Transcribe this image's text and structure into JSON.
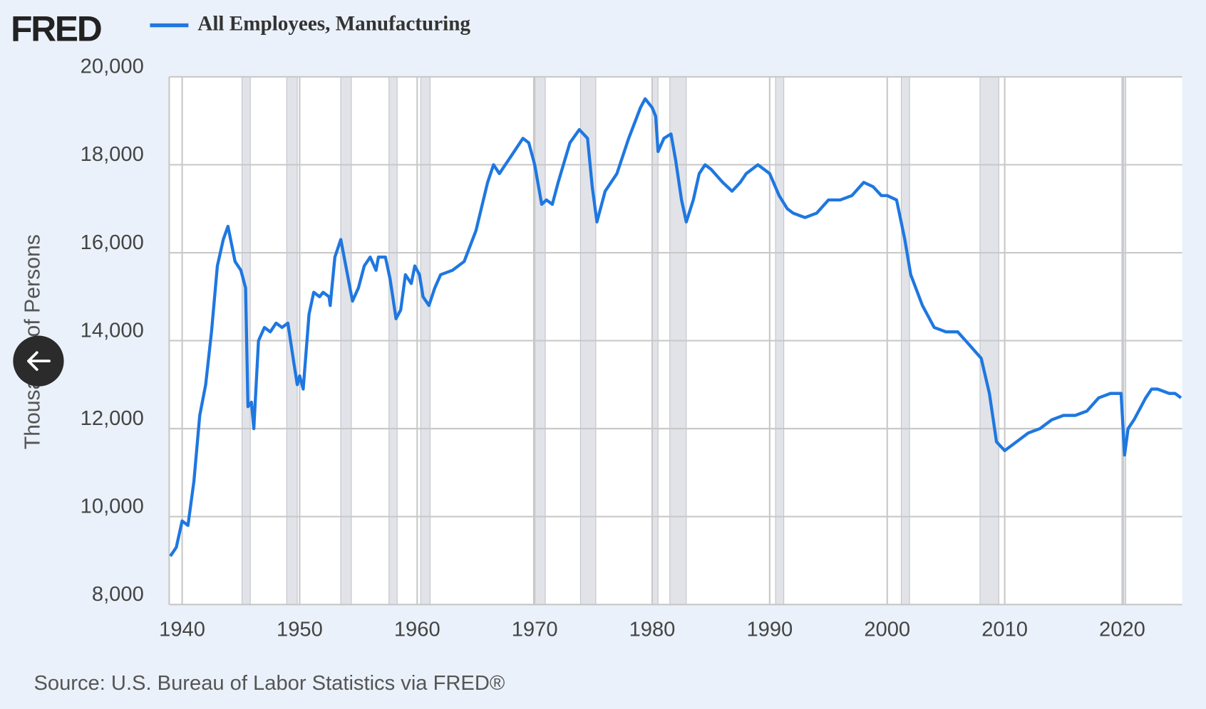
{
  "chart_data": {
    "type": "line",
    "logo": "FRED",
    "ylabel": "Thousands of Persons",
    "source": "Source: U.S. Bureau of Labor Statistics via FRED®",
    "xlim": [
      1938.9,
      2025.1
    ],
    "ylim": [
      8000,
      20000
    ],
    "xticks": [
      1940,
      1950,
      1960,
      1970,
      1980,
      1990,
      2000,
      2010,
      2020
    ],
    "yticks": [
      {
        "value": 8000,
        "label": "8,000"
      },
      {
        "value": 10000,
        "label": "10,000"
      },
      {
        "value": 12000,
        "label": "12,000"
      },
      {
        "value": 14000,
        "label": "14,000"
      },
      {
        "value": 16000,
        "label": "16,000"
      },
      {
        "value": 18000,
        "label": "18,000"
      },
      {
        "value": 20000,
        "label": "20,000"
      }
    ],
    "grid": true,
    "recessions": [
      [
        1945.1,
        1945.8
      ],
      [
        1948.9,
        1949.8
      ],
      [
        1953.5,
        1954.4
      ],
      [
        1957.6,
        1958.3
      ],
      [
        1960.3,
        1961.1
      ],
      [
        1969.9,
        1970.9
      ],
      [
        1973.9,
        1975.2
      ],
      [
        1980.0,
        1980.5
      ],
      [
        1981.5,
        1982.9
      ],
      [
        1990.5,
        1991.2
      ],
      [
        2001.2,
        2001.9
      ],
      [
        2007.9,
        2009.5
      ],
      [
        2020.1,
        2020.3
      ]
    ],
    "recession_color": "#e1e3e8",
    "series": [
      {
        "name": "All Employees, Manufacturing",
        "color": "#1f77e0",
        "x": [
          1939.0,
          1939.5,
          1940.0,
          1940.5,
          1941.0,
          1941.5,
          1942.0,
          1942.5,
          1943.0,
          1943.5,
          1943.9,
          1944.5,
          1945.0,
          1945.4,
          1945.6,
          1945.9,
          1946.1,
          1946.5,
          1947.0,
          1947.5,
          1948.0,
          1948.5,
          1949.0,
          1949.5,
          1949.8,
          1950.0,
          1950.3,
          1950.8,
          1951.2,
          1951.7,
          1952.0,
          1952.5,
          1952.6,
          1953.0,
          1953.5,
          1954.0,
          1954.5,
          1955.0,
          1955.5,
          1956.0,
          1956.5,
          1956.7,
          1957.3,
          1957.7,
          1958.2,
          1958.6,
          1959.0,
          1959.5,
          1959.8,
          1960.2,
          1960.5,
          1961.0,
          1961.5,
          1962.0,
          1963.0,
          1964.0,
          1965.0,
          1966.0,
          1966.5,
          1967.0,
          1967.5,
          1968.0,
          1969.0,
          1969.5,
          1970.0,
          1970.6,
          1971.0,
          1971.5,
          1972.0,
          1973.0,
          1973.8,
          1974.5,
          1974.9,
          1975.3,
          1976.0,
          1976.5,
          1977.0,
          1978.0,
          1979.0,
          1979.4,
          1980.0,
          1980.3,
          1980.5,
          1981.0,
          1981.6,
          1982.0,
          1982.5,
          1982.9,
          1983.5,
          1984.0,
          1984.5,
          1985.0,
          1986.0,
          1986.8,
          1987.5,
          1988.0,
          1989.0,
          1989.5,
          1990.0,
          1990.8,
          1991.5,
          1992.0,
          1993.0,
          1994.0,
          1995.0,
          1996.0,
          1997.0,
          1998.0,
          1998.8,
          1999.5,
          2000.0,
          2000.8,
          2001.5,
          2002.0,
          2003.0,
          2004.0,
          2005.0,
          2006.0,
          2007.0,
          2008.0,
          2008.7,
          2009.3,
          2010.0,
          2011.0,
          2012.0,
          2013.0,
          2014.0,
          2015.0,
          2016.0,
          2017.0,
          2018.0,
          2019.0,
          2019.9,
          2020.2,
          2020.5,
          2021.0,
          2022.0,
          2022.5,
          2023.0,
          2024.0,
          2024.5,
          2025.0
        ],
        "values": [
          9100,
          9300,
          9900,
          9800,
          10800,
          12300,
          13000,
          14200,
          15700,
          16300,
          16600,
          15800,
          15600,
          15200,
          12500,
          12600,
          12000,
          14000,
          14300,
          14200,
          14400,
          14300,
          14400,
          13500,
          13000,
          13200,
          12900,
          14600,
          15100,
          15000,
          15100,
          15000,
          14800,
          15900,
          16300,
          15600,
          14900,
          15200,
          15700,
          15900,
          15600,
          15900,
          15900,
          15400,
          14500,
          14700,
          15500,
          15300,
          15700,
          15500,
          15000,
          14800,
          15200,
          15500,
          15600,
          15800,
          16500,
          17600,
          18000,
          17800,
          18000,
          18200,
          18600,
          18500,
          18000,
          17100,
          17200,
          17100,
          17600,
          18500,
          18800,
          18600,
          17500,
          16700,
          17400,
          17600,
          17800,
          18600,
          19300,
          19500,
          19300,
          19100,
          18300,
          18600,
          18700,
          18100,
          17200,
          16700,
          17200,
          17800,
          18000,
          17900,
          17600,
          17400,
          17600,
          17800,
          18000,
          17900,
          17800,
          17300,
          17000,
          16900,
          16800,
          16900,
          17200,
          17200,
          17300,
          17600,
          17500,
          17300,
          17300,
          17200,
          16300,
          15500,
          14800,
          14300,
          14200,
          14200,
          13900,
          13600,
          12800,
          11700,
          11500,
          11700,
          11900,
          12000,
          12200,
          12300,
          12300,
          12400,
          12700,
          12800,
          12800,
          11400,
          12000,
          12200,
          12700,
          12900,
          12900,
          12800,
          12800,
          12700
        ]
      }
    ]
  }
}
